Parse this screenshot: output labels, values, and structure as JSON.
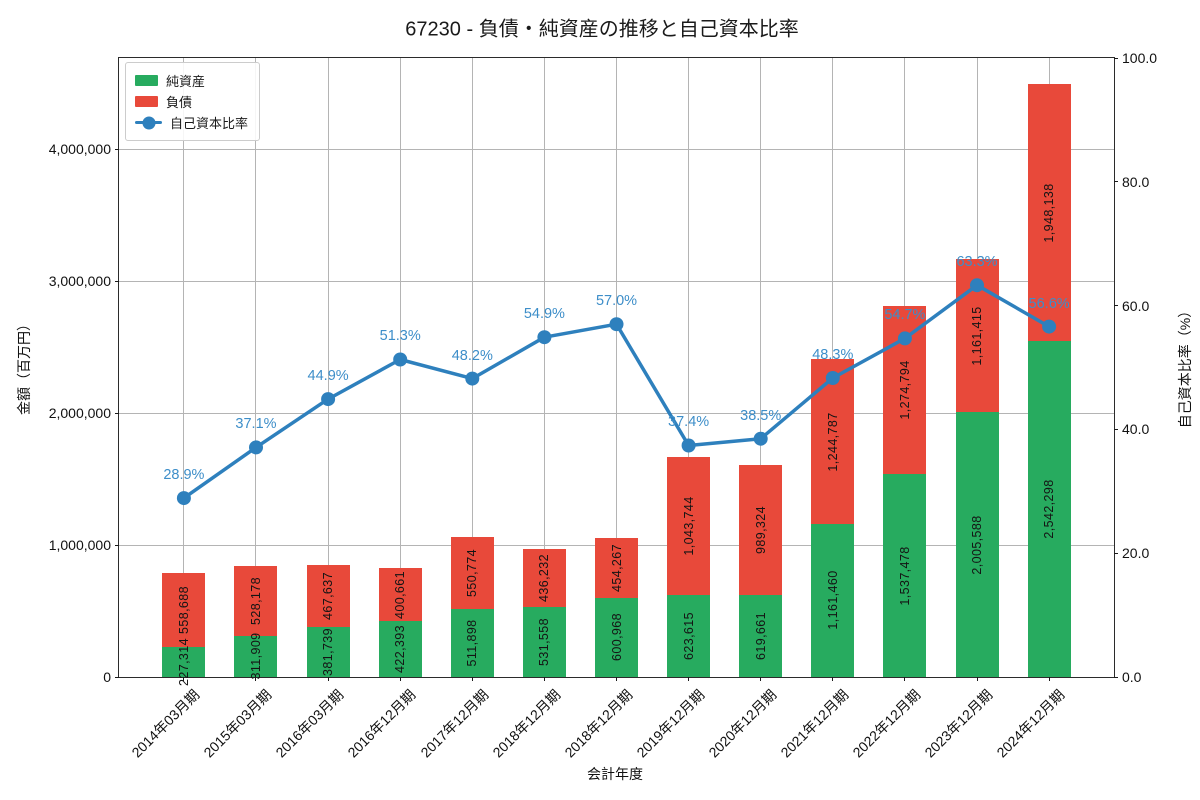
{
  "chart_data": {
    "type": "bar",
    "variant": "stacked-bars-with-line-overlay",
    "title": "67230 - 負債・純資産の推移と自己資本比率",
    "xlabel": "会計年度",
    "ylabel": "金額（百万円）",
    "ylabel_right": "自己資本比率（%）",
    "categories": [
      "2014年03月期",
      "2015年03月期",
      "2016年03月期",
      "2016年12月期",
      "2017年12月期",
      "2018年12月期",
      "2018年12月期",
      "2019年12月期",
      "2020年12月期",
      "2021年12月期",
      "2022年12月期",
      "2023年12月期",
      "2024年12月期"
    ],
    "series": [
      {
        "name": "純資産",
        "type": "bar",
        "stacked": true,
        "axis": "left",
        "color": "#27ab5f",
        "values": [
          227314,
          311909,
          381739,
          422393,
          511898,
          531558,
          600968,
          623615,
          619661,
          1161460,
          1537478,
          2005588,
          2542298
        ]
      },
      {
        "name": "負債",
        "type": "bar",
        "stacked": true,
        "axis": "left",
        "color": "#e8493a",
        "values": [
          558688,
          528178,
          467637,
          400661,
          550774,
          436232,
          454267,
          1043744,
          989324,
          1244787,
          1274794,
          1161415,
          1948138
        ]
      },
      {
        "name": "自己資本比率",
        "type": "line",
        "axis": "right",
        "color": "#2e80bd",
        "values": [
          28.9,
          37.1,
          44.9,
          51.3,
          48.2,
          54.9,
          57.0,
          37.4,
          38.5,
          48.3,
          54.7,
          63.3,
          56.6
        ]
      }
    ],
    "ylim_left": [
      0,
      4690000
    ],
    "ylim_right": [
      0,
      100
    ],
    "yticks_left": {
      "labels": [
        "0",
        "1,000,000",
        "2,000,000",
        "3,000,000",
        "4,000,000"
      ],
      "values": [
        0,
        1000000,
        2000000,
        3000000,
        4000000
      ]
    },
    "yticks_right": {
      "labels": [
        "0.0",
        "20.0",
        "40.0",
        "60.0",
        "80.0",
        "100.0"
      ],
      "values": [
        0,
        20,
        40,
        60,
        80,
        100
      ]
    },
    "grid": true,
    "legend_position": "upper left",
    "bar_width_ratio": 0.6,
    "colors": {
      "grid": "#b4b4b4",
      "spine": "#2b2b2b",
      "bar_label_text": "#141414",
      "ratio_label_text": "#3d8ec9"
    }
  },
  "legend": {
    "items": [
      {
        "label": "純資産",
        "marker": "green-square-icon"
      },
      {
        "label": "負債",
        "marker": "red-square-icon"
      },
      {
        "label": "自己資本比率",
        "marker": "blue-line-dot-icon"
      }
    ]
  }
}
